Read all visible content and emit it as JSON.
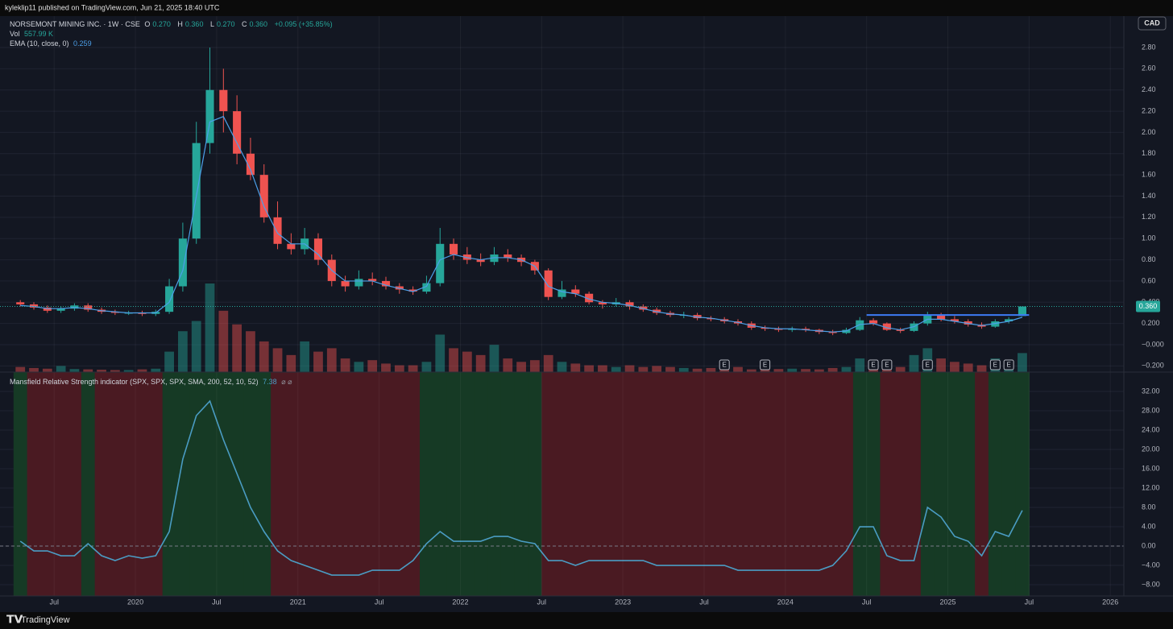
{
  "header": {
    "published": "kyleklip11 published on TradingView.com, Jun 21, 2025 18:40 UTC",
    "brand": "TradingView",
    "currency": "CAD"
  },
  "chart_data": [
    {
      "type": "candlestick",
      "symbol": "NORSEMONT MINING INC. · 1W · CSE",
      "ohlc_labels": [
        {
          "name": "O",
          "value": 0.27,
          "label": "0.270"
        },
        {
          "name": "H",
          "value": 0.36,
          "label": "0.360"
        },
        {
          "name": "L",
          "value": 0.27,
          "label": "0.270"
        },
        {
          "name": "C",
          "value": 0.36,
          "label": "0.360"
        }
      ],
      "change": {
        "value": 0.095,
        "label": "+0.095 (+35.85%)"
      },
      "x": [
        "2019-04",
        "2019-05",
        "2019-06",
        "2019-07",
        "2019-08",
        "2019-09",
        "2019-10",
        "2019-11",
        "2019-12",
        "2020-01",
        "2020-02",
        "2020-03",
        "2020-04",
        "2020-05",
        "2020-06",
        "2020-07",
        "2020-08",
        "2020-09",
        "2020-10",
        "2020-11",
        "2020-12",
        "2021-01",
        "2021-02",
        "2021-03",
        "2021-04",
        "2021-05",
        "2021-06",
        "2021-07",
        "2021-08",
        "2021-09",
        "2021-10",
        "2021-11",
        "2021-12",
        "2022-01",
        "2022-02",
        "2022-03",
        "2022-04",
        "2022-05",
        "2022-06",
        "2022-07",
        "2022-08",
        "2022-09",
        "2022-10",
        "2022-11",
        "2022-12",
        "2023-01",
        "2023-02",
        "2023-03",
        "2023-04",
        "2023-05",
        "2023-06",
        "2023-07",
        "2023-08",
        "2023-09",
        "2023-10",
        "2023-11",
        "2023-12",
        "2024-01",
        "2024-02",
        "2024-03",
        "2024-04",
        "2024-05",
        "2024-06",
        "2024-07",
        "2024-08",
        "2024-09",
        "2024-10",
        "2024-11",
        "2024-12",
        "2025-01",
        "2025-02",
        "2025-03",
        "2025-04",
        "2025-05",
        "2025-06"
      ],
      "open": [
        0.4,
        0.38,
        0.35,
        0.32,
        0.34,
        0.37,
        0.33,
        0.31,
        0.3,
        0.3,
        0.29,
        0.31,
        0.55,
        1.0,
        1.9,
        2.4,
        2.2,
        1.8,
        1.6,
        1.2,
        0.95,
        0.9,
        1.0,
        0.8,
        0.6,
        0.55,
        0.62,
        0.6,
        0.55,
        0.52,
        0.5,
        0.58,
        0.95,
        0.85,
        0.8,
        0.78,
        0.85,
        0.82,
        0.78,
        0.7,
        0.45,
        0.52,
        0.48,
        0.4,
        0.38,
        0.4,
        0.36,
        0.33,
        0.3,
        0.28,
        0.28,
        0.25,
        0.24,
        0.22,
        0.2,
        0.16,
        0.15,
        0.14,
        0.15,
        0.14,
        0.12,
        0.11,
        0.14,
        0.23,
        0.2,
        0.14,
        0.13,
        0.2,
        0.28,
        0.24,
        0.22,
        0.19,
        0.17,
        0.22,
        0.27
      ],
      "high": [
        0.42,
        0.4,
        0.37,
        0.36,
        0.39,
        0.39,
        0.35,
        0.33,
        0.32,
        0.32,
        0.33,
        0.62,
        1.15,
        2.1,
        2.8,
        2.6,
        2.35,
        1.95,
        1.7,
        1.35,
        1.05,
        1.1,
        1.05,
        0.85,
        0.65,
        0.7,
        0.68,
        0.64,
        0.58,
        0.55,
        0.65,
        1.1,
        1.0,
        0.92,
        0.86,
        0.92,
        0.9,
        0.85,
        0.8,
        0.72,
        0.6,
        0.56,
        0.5,
        0.42,
        0.44,
        0.42,
        0.38,
        0.35,
        0.32,
        0.31,
        0.3,
        0.27,
        0.26,
        0.24,
        0.22,
        0.18,
        0.17,
        0.17,
        0.17,
        0.15,
        0.14,
        0.16,
        0.26,
        0.25,
        0.21,
        0.16,
        0.22,
        0.31,
        0.3,
        0.27,
        0.24,
        0.21,
        0.24,
        0.26,
        0.36
      ],
      "low": [
        0.36,
        0.33,
        0.3,
        0.3,
        0.32,
        0.31,
        0.29,
        0.28,
        0.28,
        0.27,
        0.27,
        0.29,
        0.5,
        0.95,
        1.8,
        2.0,
        1.7,
        1.55,
        1.15,
        0.9,
        0.85,
        0.85,
        0.75,
        0.55,
        0.5,
        0.52,
        0.56,
        0.52,
        0.48,
        0.47,
        0.48,
        0.55,
        0.8,
        0.76,
        0.74,
        0.75,
        0.78,
        0.74,
        0.66,
        0.42,
        0.43,
        0.45,
        0.38,
        0.34,
        0.36,
        0.33,
        0.31,
        0.28,
        0.26,
        0.25,
        0.23,
        0.22,
        0.2,
        0.18,
        0.14,
        0.13,
        0.12,
        0.12,
        0.12,
        0.1,
        0.09,
        0.1,
        0.13,
        0.18,
        0.13,
        0.11,
        0.12,
        0.18,
        0.22,
        0.2,
        0.17,
        0.15,
        0.16,
        0.2,
        0.27
      ],
      "close": [
        0.38,
        0.35,
        0.32,
        0.34,
        0.37,
        0.33,
        0.31,
        0.3,
        0.3,
        0.29,
        0.31,
        0.55,
        1.0,
        1.9,
        2.4,
        2.2,
        1.8,
        1.6,
        1.2,
        0.95,
        0.9,
        1.0,
        0.8,
        0.6,
        0.55,
        0.62,
        0.6,
        0.55,
        0.52,
        0.5,
        0.58,
        0.95,
        0.85,
        0.8,
        0.78,
        0.85,
        0.82,
        0.78,
        0.7,
        0.45,
        0.52,
        0.48,
        0.4,
        0.38,
        0.4,
        0.36,
        0.33,
        0.3,
        0.28,
        0.28,
        0.25,
        0.24,
        0.22,
        0.2,
        0.16,
        0.15,
        0.14,
        0.15,
        0.14,
        0.12,
        0.11,
        0.14,
        0.23,
        0.2,
        0.14,
        0.13,
        0.2,
        0.28,
        0.24,
        0.22,
        0.19,
        0.17,
        0.22,
        0.24,
        0.36
      ],
      "up_color": "#26a69a",
      "down_color": "#ef5350",
      "volume": {
        "name": "Vol",
        "last": {
          "value": 557.99,
          "label": "557.99 K"
        },
        "values": [
          150,
          120,
          100,
          180,
          90,
          80,
          70,
          60,
          60,
          80,
          100,
          600,
          1200,
          1500,
          2600,
          1800,
          1400,
          1200,
          900,
          700,
          500,
          900,
          600,
          700,
          400,
          300,
          350,
          250,
          200,
          200,
          300,
          1100,
          700,
          600,
          500,
          800,
          400,
          300,
          350,
          500,
          300,
          250,
          200,
          200,
          150,
          200,
          150,
          180,
          150,
          120,
          100,
          120,
          100,
          150,
          80,
          100,
          90,
          100,
          90,
          80,
          120,
          150,
          400,
          300,
          200,
          150,
          500,
          700,
          400,
          300,
          250,
          200,
          400,
          300,
          557.99
        ]
      },
      "ema": {
        "name": "EMA (10, close, 0)",
        "color": "#4c9fe8",
        "last": {
          "value": 0.259,
          "label": "0.259"
        },
        "values": [
          0.37,
          0.36,
          0.34,
          0.34,
          0.35,
          0.34,
          0.32,
          0.31,
          0.3,
          0.3,
          0.3,
          0.4,
          0.7,
          1.4,
          2.1,
          2.15,
          1.9,
          1.65,
          1.3,
          1.05,
          0.95,
          0.95,
          0.85,
          0.7,
          0.6,
          0.6,
          0.6,
          0.56,
          0.53,
          0.5,
          0.55,
          0.8,
          0.85,
          0.82,
          0.8,
          0.82,
          0.82,
          0.8,
          0.74,
          0.55,
          0.5,
          0.48,
          0.43,
          0.4,
          0.39,
          0.37,
          0.34,
          0.31,
          0.29,
          0.28,
          0.26,
          0.25,
          0.23,
          0.21,
          0.18,
          0.16,
          0.15,
          0.15,
          0.14,
          0.13,
          0.12,
          0.13,
          0.19,
          0.2,
          0.16,
          0.14,
          0.17,
          0.24,
          0.24,
          0.22,
          0.2,
          0.18,
          0.2,
          0.22,
          0.259
        ]
      },
      "last_price": {
        "value": 0.36,
        "label": "0.360"
      },
      "earnings": {
        "label": "E",
        "x": [
          "2023-08",
          "2023-11",
          "2024-07",
          "2024-08",
          "2024-11",
          "2025-04",
          "2025-05"
        ]
      },
      "level": {
        "value": 0.28,
        "x": [
          "2024-07",
          "2025-07"
        ],
        "color": "#3d7bf5"
      },
      "xlim": [
        "2019-03",
        "2026-02"
      ],
      "ylim": [
        -0.258,
        3.096
      ],
      "yticks": [
        {
          "value": 2.8,
          "label": "2.80"
        },
        {
          "value": 2.6,
          "label": "2.60"
        },
        {
          "value": 2.4,
          "label": "2.40"
        },
        {
          "value": 2.2,
          "label": "2.20"
        },
        {
          "value": 2.0,
          "label": "2.00"
        },
        {
          "value": 1.8,
          "label": "1.80"
        },
        {
          "value": 1.6,
          "label": "1.60"
        },
        {
          "value": 1.4,
          "label": "1.40"
        },
        {
          "value": 1.2,
          "label": "1.20"
        },
        {
          "value": 1.0,
          "label": "1.00"
        },
        {
          "value": 0.8,
          "label": "0.80"
        },
        {
          "value": 0.6,
          "label": "0.60"
        },
        {
          "value": 0.4,
          "label": "0.400"
        },
        {
          "value": 0.2,
          "label": "0.200"
        },
        {
          "value": 0,
          "label": "−0.000"
        },
        {
          "value": -0.2,
          "label": "−0.200"
        }
      ],
      "grid": true
    },
    {
      "type": "line",
      "title": "Mansfield Relative Strength indicator (SPX, SPX, SPX, SMA, 200, 52, 10, 52)",
      "last": {
        "value": 7.38,
        "label": "7.38"
      },
      "extra": "⌀ ⌀",
      "color": "#4a9cc3",
      "positive_color": "#163a25",
      "negative_color": "#4a1a22",
      "x": [
        "2019-04",
        "2019-05",
        "2019-06",
        "2019-07",
        "2019-08",
        "2019-09",
        "2019-10",
        "2019-11",
        "2019-12",
        "2020-01",
        "2020-02",
        "2020-03",
        "2020-04",
        "2020-05",
        "2020-06",
        "2020-07",
        "2020-08",
        "2020-09",
        "2020-10",
        "2020-11",
        "2020-12",
        "2021-01",
        "2021-02",
        "2021-03",
        "2021-04",
        "2021-05",
        "2021-06",
        "2021-07",
        "2021-08",
        "2021-09",
        "2021-10",
        "2021-11",
        "2021-12",
        "2022-01",
        "2022-02",
        "2022-03",
        "2022-04",
        "2022-05",
        "2022-06",
        "2022-07",
        "2022-08",
        "2022-09",
        "2022-10",
        "2022-11",
        "2022-12",
        "2023-01",
        "2023-02",
        "2023-03",
        "2023-04",
        "2023-05",
        "2023-06",
        "2023-07",
        "2023-08",
        "2023-09",
        "2023-10",
        "2023-11",
        "2023-12",
        "2024-01",
        "2024-02",
        "2024-03",
        "2024-04",
        "2024-05",
        "2024-06",
        "2024-07",
        "2024-08",
        "2024-09",
        "2024-10",
        "2024-11",
        "2024-12",
        "2025-01",
        "2025-02",
        "2025-03",
        "2025-04",
        "2025-05",
        "2025-06"
      ],
      "values": [
        1,
        -1,
        -1,
        -2,
        -2,
        0.5,
        -2,
        -3,
        -2,
        -2.5,
        -2,
        3,
        18,
        27,
        30,
        22,
        15,
        8,
        3,
        -1,
        -3,
        -4,
        -5,
        -6,
        -6,
        -6,
        -5,
        -5,
        -5,
        -3,
        0.5,
        3,
        1,
        1,
        1,
        2,
        2,
        1,
        0.5,
        -3,
        -3,
        -4,
        -3,
        -3,
        -3,
        -3,
        -3,
        -4,
        -4,
        -4,
        -4,
        -4,
        -4,
        -5,
        -5,
        -5,
        -5,
        -5,
        -5,
        -5,
        -4,
        -1,
        4,
        4,
        -2,
        -3,
        -3,
        8,
        6,
        2,
        1,
        -2,
        3,
        2,
        7.38
      ],
      "xlim": [
        "2019-03",
        "2026-02"
      ],
      "xticks": [
        {
          "value": "2019-07",
          "label": "Jul"
        },
        {
          "value": "2020-01",
          "label": "2020"
        },
        {
          "value": "2020-07",
          "label": "Jul"
        },
        {
          "value": "2021-01",
          "label": "2021"
        },
        {
          "value": "2021-07",
          "label": "Jul"
        },
        {
          "value": "2022-01",
          "label": "2022"
        },
        {
          "value": "2022-07",
          "label": "Jul"
        },
        {
          "value": "2023-01",
          "label": "2023"
        },
        {
          "value": "2023-07",
          "label": "Jul"
        },
        {
          "value": "2024-01",
          "label": "2024"
        },
        {
          "value": "2024-07",
          "label": "Jul"
        },
        {
          "value": "2025-01",
          "label": "2025"
        },
        {
          "value": "2025-07",
          "label": "Jul"
        },
        {
          "value": "2026-01",
          "label": "2026"
        }
      ],
      "ylim": [
        -10.33,
        36
      ],
      "yticks": [
        {
          "value": 32,
          "label": "32.00"
        },
        {
          "value": 28,
          "label": "28.00"
        },
        {
          "value": 24,
          "label": "24.00"
        },
        {
          "value": 20,
          "label": "20.00"
        },
        {
          "value": 16,
          "label": "16.00"
        },
        {
          "value": 12,
          "label": "12.00"
        },
        {
          "value": 8,
          "label": "8.00"
        },
        {
          "value": 4,
          "label": "4.00"
        },
        {
          "value": 0,
          "label": "0.00"
        },
        {
          "value": -4,
          "label": "−4.00"
        },
        {
          "value": -8,
          "label": "−8.00"
        }
      ],
      "grid": true
    }
  ]
}
